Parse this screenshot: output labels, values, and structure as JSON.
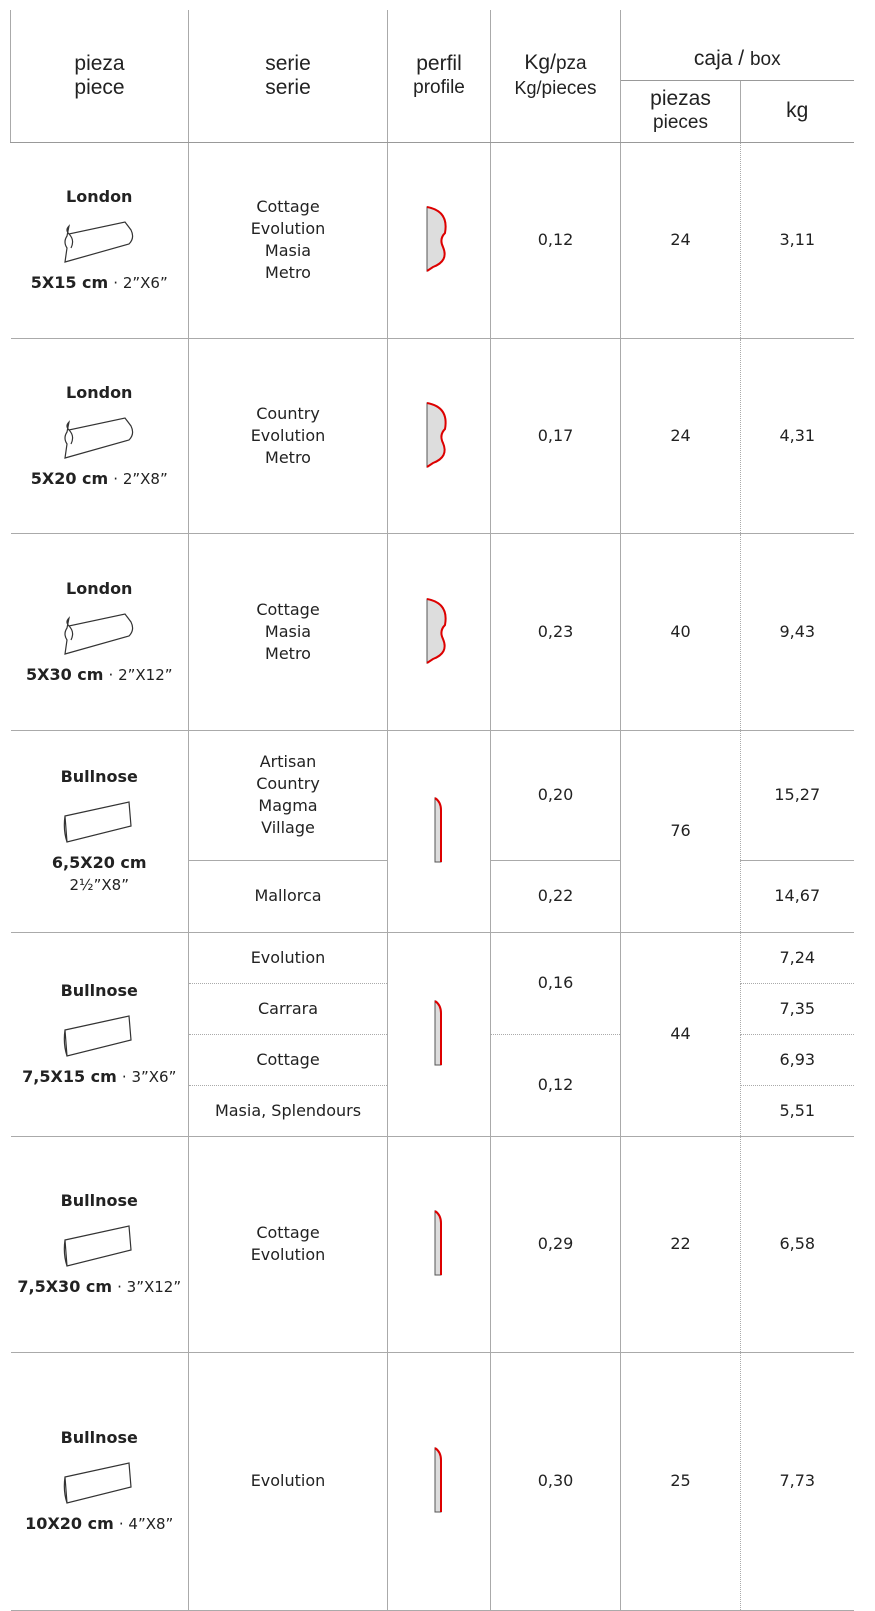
{
  "header": {
    "pieza": [
      "pieza",
      "piece"
    ],
    "serie": [
      "serie",
      "serie"
    ],
    "perfil": [
      "perfil",
      "profile"
    ],
    "weight": [
      [
        "Kg/",
        "pza"
      ],
      [
        "Kg/",
        "pieces"
      ]
    ],
    "box": [
      "caja /",
      "box"
    ],
    "box_pieces": [
      "piezas",
      "pieces"
    ],
    "box_kg": "kg"
  },
  "groups": [
    {
      "name": "London",
      "size": "5X15 cm",
      "imperial": "· 2”X6”",
      "series": [
        [
          "Cottage",
          "Evolution",
          "Masia",
          "Metro"
        ]
      ],
      "weights": [
        "0,12"
      ],
      "pieces": [
        "24"
      ],
      "kg": [
        "3,11"
      ]
    },
    {
      "name": "London",
      "size": "5X20 cm",
      "imperial": "· 2”X8”",
      "series": [
        [
          "Country",
          "Evolution",
          "Metro"
        ]
      ],
      "weights": [
        "0,17"
      ],
      "pieces": [
        "24"
      ],
      "kg": [
        "4,31"
      ]
    },
    {
      "name": "London",
      "size": "5X30 cm",
      "imperial": "· 2”X12”",
      "series": [
        [
          "Cottage",
          "Masia",
          "Metro"
        ]
      ],
      "weights": [
        "0,23"
      ],
      "pieces": [
        "40"
      ],
      "kg": [
        "9,43"
      ]
    },
    {
      "name": "Bullnose",
      "size": "6,5X20 cm",
      "imperial": "2½”X8”",
      "series": [
        [
          "Artisan",
          "Country",
          "Magma",
          "Village"
        ],
        [
          "Mallorca"
        ]
      ],
      "weights": [
        "0,20",
        "0,22"
      ],
      "pieces": [
        "76"
      ],
      "kg": [
        "15,27",
        "14,67"
      ]
    },
    {
      "name": "Bullnose",
      "size": "7,5X15 cm",
      "imperial": "· 3”X6”",
      "series": [
        [
          "Evolution"
        ],
        [
          "Carrara"
        ],
        [
          "Cottage"
        ],
        [
          "Masia, Splendours"
        ]
      ],
      "weights": [
        "0,16",
        "0,12"
      ],
      "pieces": [
        "44"
      ],
      "kg": [
        "7,24",
        "7,35",
        "6,93",
        "5,51"
      ]
    },
    {
      "name": "Bullnose",
      "size": "7,5X30 cm",
      "imperial": "· 3”X12”",
      "series": [
        [
          "Cottage",
          "Evolution"
        ]
      ],
      "weights": [
        "0,29"
      ],
      "pieces": [
        "22"
      ],
      "kg": [
        "6,58"
      ]
    },
    {
      "name": "Bullnose",
      "size": "10X20 cm",
      "imperial": "· 4”X8”",
      "series": [
        [
          "Evolution"
        ]
      ],
      "weights": [
        "0,30"
      ],
      "pieces": [
        "25"
      ],
      "kg": [
        "7,73"
      ]
    }
  ]
}
